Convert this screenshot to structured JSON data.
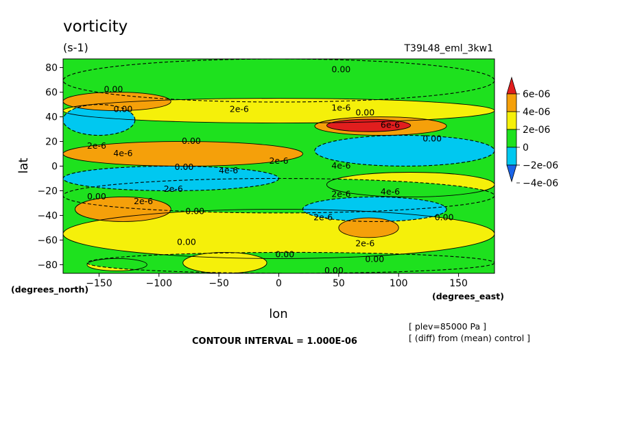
{
  "chart_data": {
    "type": "heatmap",
    "title": "vorticity",
    "units": "(s-1)",
    "experiment": "T39L48_eml_3kw1",
    "xlabel": "lon",
    "ylabel": "lat",
    "x_unit_label": "(degrees_east)",
    "y_unit_label": "(degrees_north)",
    "xlim": [
      -180,
      180
    ],
    "ylim": [
      -87,
      87
    ],
    "x_ticks": [
      -150,
      -100,
      -50,
      0,
      50,
      100,
      150
    ],
    "y_ticks": [
      80,
      60,
      40,
      20,
      0,
      -20,
      -40,
      -60,
      -80
    ],
    "contour_interval": "CONTOUR INTERVAL = 1.000E-06",
    "notes": [
      "[ plev=85000 Pa ]",
      "[ (diff) from (mean) control ]"
    ],
    "colorbar": {
      "labels": [
        "6e-06",
        "4e-06",
        "2e-06",
        "0",
        "−2e-06",
        "−4e-06"
      ],
      "levels": [
        -6e-06,
        -4e-06,
        -2e-06,
        0,
        2e-06,
        4e-06,
        6e-06
      ],
      "colors": [
        "#1a64e8",
        "#00c8f0",
        "#1ee11e",
        "#f5f00a",
        "#f5a00a",
        "#e11e1e"
      ]
    },
    "regions": [
      {
        "value": -1e-06,
        "lon": [
          -180,
          180
        ],
        "lat": [
          52,
          87
        ]
      },
      {
        "value": 1e-06,
        "lon": [
          -180,
          180
        ],
        "lat": [
          35,
          55
        ]
      },
      {
        "value": 1e-06,
        "lon": [
          -180,
          180
        ],
        "lat": [
          -75,
          -35
        ]
      },
      {
        "value": 1e-06,
        "lon": [
          40,
          180
        ],
        "lat": [
          -25,
          -5
        ]
      },
      {
        "value": -1e-06,
        "lon": [
          -180,
          180
        ],
        "lat": [
          -38,
          -10
        ]
      },
      {
        "value": -3e-06,
        "lon": [
          -180,
          0
        ],
        "lat": [
          -20,
          0
        ]
      },
      {
        "value": 3e-06,
        "lon": [
          -180,
          20
        ],
        "lat": [
          0,
          20
        ]
      },
      {
        "value": -3e-06,
        "lon": [
          30,
          180
        ],
        "lat": [
          0,
          25
        ]
      },
      {
        "value": 3e-06,
        "lon": [
          30,
          140
        ],
        "lat": [
          25,
          40
        ]
      },
      {
        "value": 5e-06,
        "lon": [
          40,
          110
        ],
        "lat": [
          28,
          38
        ]
      },
      {
        "value": -3e-06,
        "lon": [
          -180,
          -120
        ],
        "lat": [
          25,
          50
        ]
      },
      {
        "value": -3e-06,
        "lon": [
          20,
          140
        ],
        "lat": [
          -45,
          -25
        ]
      },
      {
        "value": 3e-06,
        "lon": [
          50,
          100
        ],
        "lat": [
          -58,
          -42
        ]
      },
      {
        "value": 3e-06,
        "lon": [
          -170,
          -90
        ],
        "lat": [
          -45,
          -25
        ]
      },
      {
        "value": 1e-06,
        "lon": [
          -160,
          -110
        ],
        "lat": [
          -85,
          -75
        ]
      },
      {
        "value": -1e-06,
        "lon": [
          -160,
          180
        ],
        "lat": [
          -87,
          -70
        ]
      },
      {
        "value": 1e-06,
        "lon": [
          -80,
          -10
        ],
        "lat": [
          -87,
          -70
        ]
      },
      {
        "value": 3e-06,
        "lon": [
          -180,
          -90
        ],
        "lat": [
          45,
          60
        ]
      }
    ],
    "contour_labels": [
      {
        "text": "0.00",
        "lon": 52,
        "lat": 78
      },
      {
        "text": "0.00",
        "lon": -138,
        "lat": 62
      },
      {
        "text": "0.00",
        "lon": -130,
        "lat": 46
      },
      {
        "text": "2e-6",
        "lon": -33,
        "lat": 46
      },
      {
        "text": "1e-6",
        "lon": 52,
        "lat": 47
      },
      {
        "text": "0.00",
        "lon": 72,
        "lat": 43
      },
      {
        "text": "6e-6",
        "lon": 93,
        "lat": 33
      },
      {
        "text": "0.00",
        "lon": 128,
        "lat": 22
      },
      {
        "text": "2e-6",
        "lon": -152,
        "lat": 16
      },
      {
        "text": "4e-6",
        "lon": -130,
        "lat": 10
      },
      {
        "text": "0.00",
        "lon": -73,
        "lat": 20
      },
      {
        "text": "2e-6",
        "lon": 0,
        "lat": 4
      },
      {
        "text": "4e-6",
        "lon": 52,
        "lat": 0
      },
      {
        "text": "0.00",
        "lon": -79,
        "lat": -1
      },
      {
        "text": "4e-6",
        "lon": -42,
        "lat": -4
      },
      {
        "text": "2e-6",
        "lon": -88,
        "lat": -19
      },
      {
        "text": "0.00",
        "lon": -152,
        "lat": -25
      },
      {
        "text": "2e-6",
        "lon": -113,
        "lat": -29
      },
      {
        "text": "2e-6",
        "lon": 52,
        "lat": -23
      },
      {
        "text": "4e-6",
        "lon": 93,
        "lat": -21
      },
      {
        "text": "0.00",
        "lon": -70,
        "lat": -37
      },
      {
        "text": "2e-6",
        "lon": 37,
        "lat": -42
      },
      {
        "text": "0.00",
        "lon": 138,
        "lat": -42
      },
      {
        "text": "2e-6",
        "lon": 72,
        "lat": -63
      },
      {
        "text": "0.00",
        "lon": -77,
        "lat": -62
      },
      {
        "text": "0.00",
        "lon": 5,
        "lat": -72
      },
      {
        "text": "0.00",
        "lon": 80,
        "lat": -76
      },
      {
        "text": "0.00",
        "lon": 46,
        "lat": -85
      }
    ]
  }
}
